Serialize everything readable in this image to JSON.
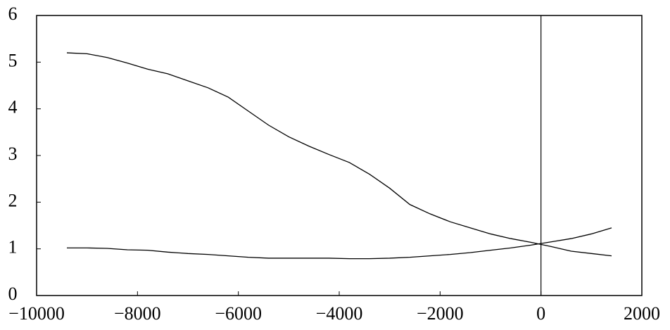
{
  "chart_data": {
    "type": "line",
    "x": [
      -9400,
      -9000,
      -8600,
      -8200,
      -7800,
      -7400,
      -7000,
      -6600,
      -6200,
      -5800,
      -5400,
      -5000,
      -4600,
      -4200,
      -3800,
      -3400,
      -3000,
      -2600,
      -2200,
      -1800,
      -1400,
      -1000,
      -600,
      -200,
      200,
      600,
      1000,
      1400
    ],
    "series": [
      {
        "color": "#000000",
        "values": [
          5.2,
          5.18,
          5.1,
          4.98,
          4.85,
          4.75,
          4.6,
          4.45,
          4.25,
          3.95,
          3.65,
          3.4,
          3.2,
          3.02,
          2.85,
          2.6,
          2.3,
          1.95,
          1.75,
          1.58,
          1.45,
          1.32,
          1.22,
          1.14,
          1.05,
          0.95,
          0.9,
          0.85
        ]
      },
      {
        "color": "#000000",
        "values": [
          1.02,
          1.02,
          1.01,
          0.98,
          0.97,
          0.93,
          0.9,
          0.88,
          0.85,
          0.82,
          0.8,
          0.8,
          0.8,
          0.8,
          0.79,
          0.79,
          0.8,
          0.82,
          0.85,
          0.88,
          0.92,
          0.97,
          1.02,
          1.08,
          1.15,
          1.22,
          1.32,
          1.45
        ]
      }
    ],
    "xlim": [
      -10000,
      2000
    ],
    "xticks": [
      {
        "value": -10000,
        "label": "−10000"
      },
      {
        "value": -8000,
        "label": "−8000"
      },
      {
        "value": -6000,
        "label": "−6000"
      },
      {
        "value": -4000,
        "label": "−4000"
      },
      {
        "value": -2000,
        "label": "−2000"
      },
      0,
      2000
    ],
    "ylim": [
      0,
      6
    ],
    "yticks": [
      0,
      1,
      2,
      3,
      4,
      5,
      6
    ],
    "vline": 0
  }
}
